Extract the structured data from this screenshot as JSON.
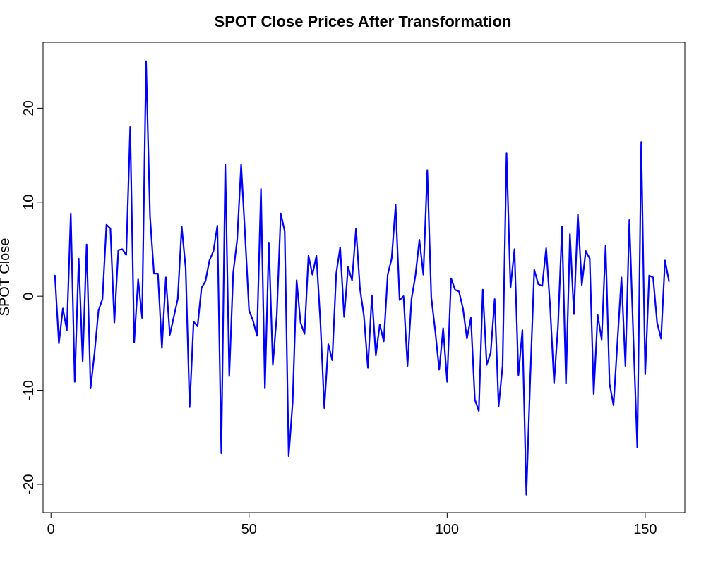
{
  "chart_data": {
    "type": "line",
    "title": "SPOT Close Prices After Transformation",
    "xlabel": "",
    "ylabel": "SPOT Close",
    "xlim": [
      -2,
      160
    ],
    "ylim": [
      -23,
      27
    ],
    "x_ticks": [
      0,
      50,
      100,
      150
    ],
    "y_ticks": [
      -20,
      -10,
      0,
      10,
      20
    ],
    "grid": false,
    "legend": "none",
    "line_color": "#0000ff",
    "series": [
      {
        "x": [
          1,
          2,
          3,
          4,
          5,
          6,
          7,
          8,
          9,
          10,
          11,
          12,
          13,
          14,
          15,
          16,
          17,
          18,
          19,
          20,
          21,
          22,
          23,
          24,
          25,
          26,
          27,
          28,
          29,
          30,
          31,
          32,
          33,
          34,
          35,
          36,
          37,
          38,
          39,
          40,
          41,
          42,
          43,
          44,
          45,
          46,
          47,
          48,
          49,
          50,
          51,
          52,
          53,
          54,
          55,
          56,
          57,
          58,
          59,
          60,
          61,
          62,
          63,
          64,
          65,
          66,
          67,
          68,
          69,
          70,
          71,
          72,
          73,
          74,
          75,
          76,
          77,
          78,
          79,
          80,
          81,
          82,
          83,
          84,
          85,
          86,
          87,
          88,
          89,
          90,
          91,
          92,
          93,
          94,
          95,
          96,
          97,
          98,
          99,
          100,
          101,
          102,
          103,
          104,
          105,
          106,
          107,
          108,
          109,
          110,
          111,
          112,
          113,
          114,
          115,
          116,
          117,
          118,
          119,
          120,
          121,
          122,
          123,
          124,
          125,
          126,
          127,
          128,
          129,
          130,
          131,
          132,
          133,
          134,
          135,
          136,
          137,
          138,
          139,
          140,
          141,
          142,
          143,
          144,
          145,
          146,
          147,
          148,
          149,
          150,
          151,
          152,
          153,
          154,
          155,
          156
        ],
        "values": [
          2.2,
          -5,
          -1.3,
          -3.6,
          8.8,
          -9.1,
          4,
          -6.9,
          5.5,
          -9.8,
          -6,
          -1.5,
          -0.3,
          7.6,
          7.2,
          -2.8,
          4.9,
          5,
          4.4,
          18,
          -4.9,
          1.8,
          -2.3,
          25,
          8.5,
          2.4,
          2.4,
          -5.5,
          2,
          -4.1,
          -2.2,
          -0.3,
          7.4,
          3,
          -11.8,
          -2.7,
          -3.2,
          0.9,
          1.6,
          3.8,
          4.8,
          7.5,
          -16.7,
          14,
          -8.5,
          2.5,
          6,
          14,
          6.5,
          -1.5,
          -2.6,
          -4.2,
          11.4,
          -9.8,
          5.7,
          -7.3,
          -2,
          8.8,
          6.9,
          -17,
          -11.3,
          1.7,
          -2.8,
          -4,
          4.3,
          2.3,
          4.3,
          -2.7,
          -11.9,
          -5.1,
          -6.8,
          2.4,
          5.2,
          -2.2,
          3.1,
          1.7,
          7.2,
          0.8,
          -2.1,
          -7.6,
          0.1,
          -6.3,
          -3,
          -4.8,
          2.3,
          4,
          9.7,
          -0.4,
          0,
          -7.4,
          -0.3,
          2.2,
          6,
          2.3,
          13.4,
          -0.1,
          -3.7,
          -7.8,
          -3.4,
          -9.1,
          1.9,
          0.7,
          0.5,
          -1.3,
          -4.5,
          -2.3,
          -11,
          -12.2,
          0.7,
          -7.3,
          -6,
          -0.3,
          -11.7,
          -7.4,
          15.2,
          0.9,
          5,
          -8.4,
          -3.6,
          -21.1,
          -8.5,
          2.8,
          1.3,
          1.1,
          5.1,
          -1.1,
          -9.2,
          -3.1,
          7.4,
          -9.3,
          6.6,
          -1.9,
          8.7,
          1.2,
          4.8,
          4,
          -10.4,
          -2,
          -4.6,
          5.4,
          -9.3,
          -11.6,
          -4.8,
          2,
          -7.4,
          8.1,
          -4.3,
          -16.1,
          16.4,
          -8.3,
          2.2,
          2,
          -2.8,
          -4.5,
          3.8,
          1.6
        ]
      }
    ]
  }
}
